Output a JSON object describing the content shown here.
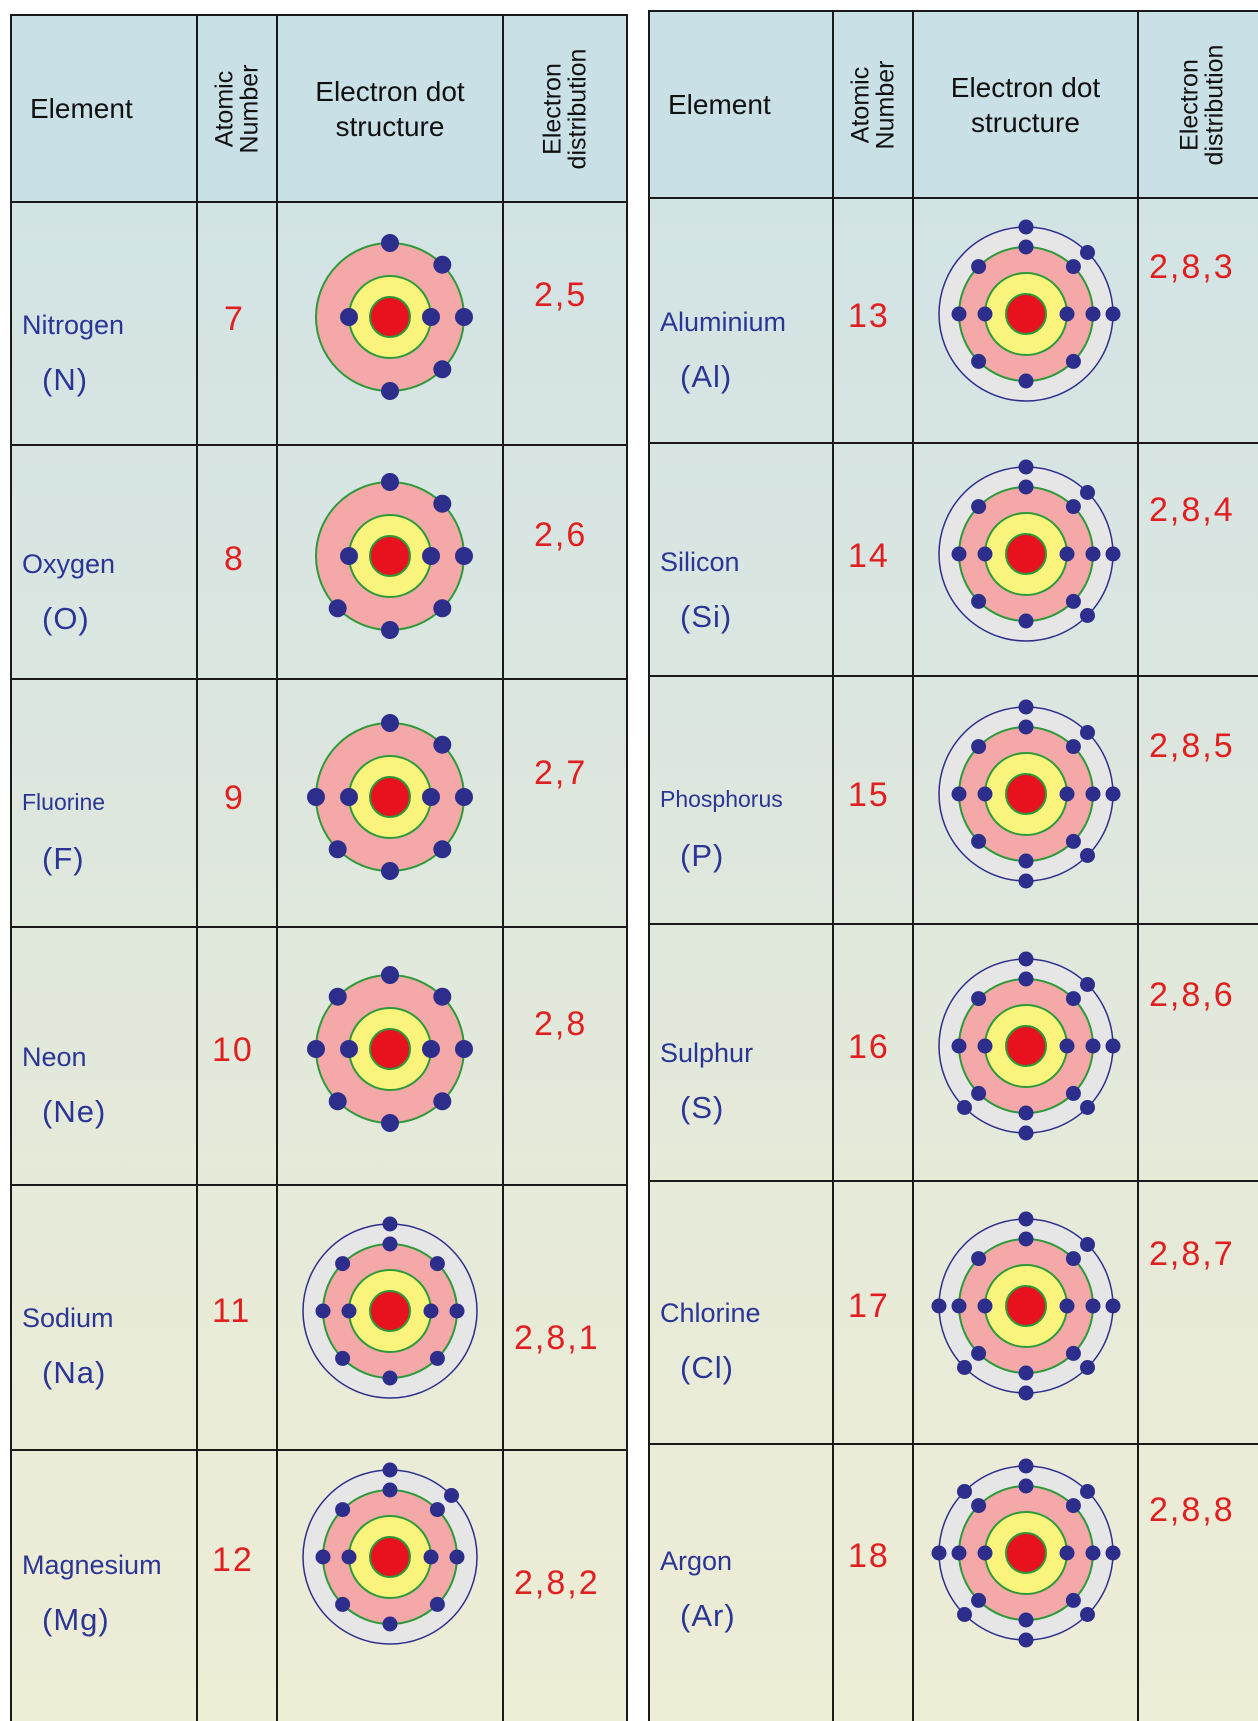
{
  "headers": {
    "element": "Element",
    "atomic_number_line1": "Atomic",
    "atomic_number_line2": "Number",
    "dot_structure_line1": "Electron dot",
    "dot_structure_line2": "structure",
    "distribution_line1": "Electron",
    "distribution_line2": "distribution"
  },
  "colors": {
    "nucleus": "#e8121e",
    "inner_ring": "#fbf47c",
    "middle_ring": "#f4a8a8",
    "outer_ring": "#e6e6e6",
    "electron": "#2d2e8c",
    "ring_line_green": "#2d9a3a",
    "ring_line_blue": "#2d2e8c",
    "name_text": "#2b3595",
    "number_text": "#e02020"
  },
  "left_elements": [
    {
      "name": "Nitrogen",
      "symbol": "(N)",
      "atomic_number": "7",
      "distribution": "2,5",
      "shells": [
        2,
        5
      ]
    },
    {
      "name": "Oxygen",
      "symbol": "(O)",
      "atomic_number": "8",
      "distribution": "2,6",
      "shells": [
        2,
        6
      ]
    },
    {
      "name": "Fluorine",
      "symbol": "(F)",
      "atomic_number": "9",
      "distribution": "2,7",
      "shells": [
        2,
        7
      ]
    },
    {
      "name": "Neon",
      "symbol": "(Ne)",
      "atomic_number": "10",
      "distribution": "2,8",
      "shells": [
        2,
        8
      ]
    },
    {
      "name": "Sodium",
      "symbol": "(Na)",
      "atomic_number": "11",
      "distribution": "2,8,1",
      "shells": [
        2,
        8,
        1
      ]
    },
    {
      "name": "Magnesium",
      "symbol": "(Mg)",
      "atomic_number": "12",
      "distribution": "2,8,2",
      "shells": [
        2,
        8,
        2
      ]
    }
  ],
  "right_elements": [
    {
      "name": "Aluminium",
      "symbol": "(Al)",
      "atomic_number": "13",
      "distribution": "2,8,3",
      "shells": [
        2,
        8,
        3
      ]
    },
    {
      "name": "Silicon",
      "symbol": "(Si)",
      "atomic_number": "14",
      "distribution": "2,8,4",
      "shells": [
        2,
        8,
        4
      ]
    },
    {
      "name": "Phosphorus",
      "symbol": "(P)",
      "atomic_number": "15",
      "distribution": "2,8,5",
      "shells": [
        2,
        8,
        5
      ]
    },
    {
      "name": "Sulphur",
      "symbol": "(S)",
      "atomic_number": "16",
      "distribution": "2,8,6",
      "shells": [
        2,
        8,
        6
      ]
    },
    {
      "name": "Chlorine",
      "symbol": "(Cl)",
      "atomic_number": "17",
      "distribution": "2,8,7",
      "shells": [
        2,
        8,
        7
      ]
    },
    {
      "name": "Argon",
      "symbol": "(Ar)",
      "atomic_number": "18",
      "distribution": "2,8,8",
      "shells": [
        2,
        8,
        8
      ]
    }
  ]
}
